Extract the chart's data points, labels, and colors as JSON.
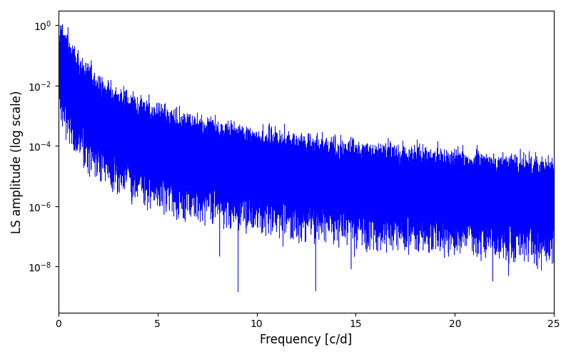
{
  "title": "",
  "xlabel": "Frequency [c/d]",
  "ylabel": "LS amplitude (log scale)",
  "xlim": [
    0,
    25
  ],
  "ylim": [
    3e-10,
    3.0
  ],
  "yticks": [
    1e-08,
    1e-06,
    0.0001,
    0.01,
    1.0
  ],
  "xticks": [
    0,
    5,
    10,
    15,
    20,
    25
  ],
  "line_color": "#0000FF",
  "background_color": "#ffffff",
  "figsize": [
    8.0,
    5.0
  ],
  "dpi": 100,
  "seed": 42
}
